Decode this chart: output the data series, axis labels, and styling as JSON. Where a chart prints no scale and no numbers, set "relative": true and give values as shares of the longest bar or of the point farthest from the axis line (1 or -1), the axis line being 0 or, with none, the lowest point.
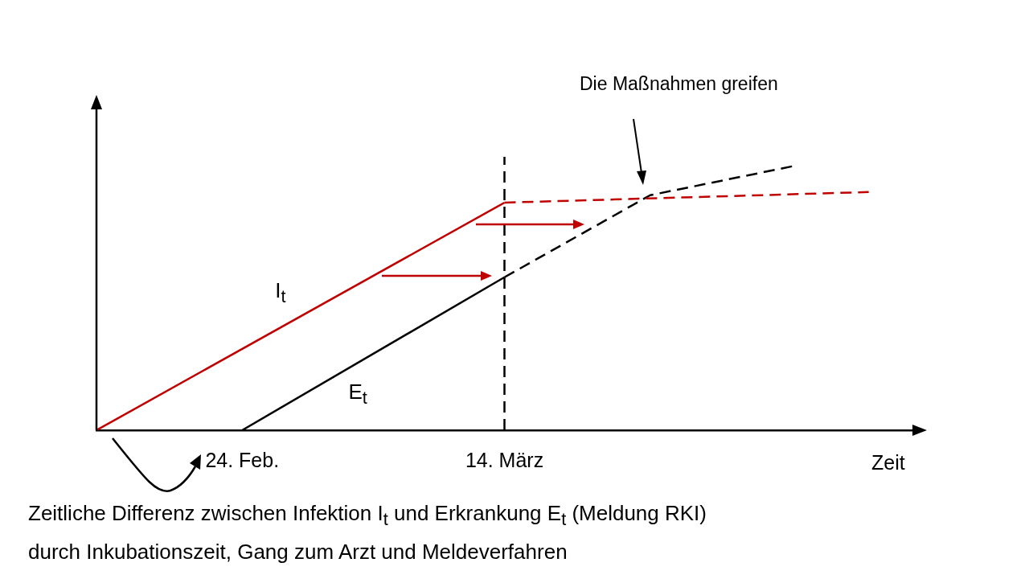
{
  "chart_data": {
    "type": "line",
    "relative": true,
    "xlabel": "Zeit",
    "xlim": [
      "--02-14",
      "--04-11"
    ],
    "xticks": [
      {
        "value": "--02-24",
        "label": "24. Feb."
      },
      {
        "value": "--03-14",
        "label": "14. März"
      }
    ],
    "series": [
      {
        "name": "I$_{t}$",
        "color": "#c00000",
        "line_style": "solid",
        "x": [
          "--02-14",
          "--03-14"
        ],
        "values": [
          0,
          0.86
        ]
      },
      {
        "color": "#c00000",
        "line_style": "dashed",
        "x": [
          "--03-14",
          "--04-08"
        ],
        "values": [
          0.86,
          0.9
        ]
      },
      {
        "name": "E$_{t}$",
        "color": "#000000",
        "line_style": "solid",
        "x": [
          "--02-24",
          "--03-14"
        ],
        "values": [
          0,
          0.578
        ]
      },
      {
        "color": "#000000",
        "line_style": "dashed",
        "x": [
          "--03-14",
          "--03-24",
          "--04-03"
        ],
        "values": [
          0.578,
          0.888,
          1
        ]
      }
    ],
    "ref_lines": [
      {
        "axis": "x",
        "value": "--03-14",
        "color": "#000000",
        "line_style": "dashed"
      }
    ],
    "annotations": [
      "Die Maßnahmen greifen",
      "Zeitliche Differenz zwischen Infektion I$_{t}$ und Erkrankung E$_{t}$ (Meldung RKI)",
      "durch Inkubationszeit, Gang zum Arzt und Meldeverfahren"
    ],
    "legend": false,
    "grid": false,
    "marker": "none"
  }
}
